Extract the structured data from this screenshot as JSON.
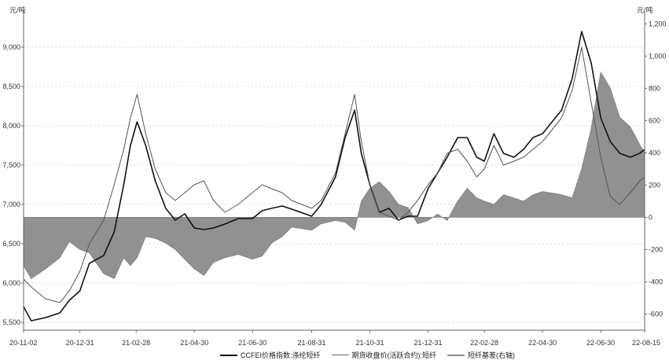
{
  "left_unit": "元/吨",
  "right_unit": "元/吨",
  "chart_data": {
    "type": "line",
    "x_ticks": [
      "20-11-02",
      "20-12-31",
      "21-02-28",
      "21-04-30",
      "21-06-30",
      "21-08-31",
      "21-10-31",
      "21-12-31",
      "22-02-28",
      "22-04-30",
      "22-06-30",
      "22-08-15"
    ],
    "left_axis": {
      "ticks": [
        "5,500",
        "6,000",
        "6,500",
        "7,000",
        "7,500",
        "8,000",
        "8,500",
        "9,000"
      ],
      "ylim": [
        5400,
        9400
      ]
    },
    "right_axis": {
      "ticks": [
        "-600",
        "-400",
        "-200",
        "0",
        "200",
        "400",
        "600",
        "800",
        "1,000",
        "1,200"
      ],
      "ylim": [
        -700,
        1250
      ]
    },
    "grid": "horizontal-dashed",
    "legend_position": "bottom",
    "series": [
      {
        "name": "CCFEI价格指数:涤纶短纤",
        "axis": "left",
        "color": "#111111",
        "points": [
          [
            "20-11-02",
            5700
          ],
          [
            "20-11-10",
            5520
          ],
          [
            "20-11-25",
            5560
          ],
          [
            "20-12-10",
            5620
          ],
          [
            "20-12-20",
            5780
          ],
          [
            "20-12-31",
            5900
          ],
          [
            "21-01-10",
            6250
          ],
          [
            "21-01-25",
            6350
          ],
          [
            "21-02-05",
            6650
          ],
          [
            "21-02-15",
            7250
          ],
          [
            "21-02-22",
            7750
          ],
          [
            "21-03-01",
            8050
          ],
          [
            "21-03-10",
            7750
          ],
          [
            "21-03-20",
            7300
          ],
          [
            "21-03-31",
            6950
          ],
          [
            "21-04-10",
            6800
          ],
          [
            "21-04-20",
            6880
          ],
          [
            "21-04-30",
            6700
          ],
          [
            "21-05-10",
            6680
          ],
          [
            "21-05-20",
            6700
          ],
          [
            "21-06-01",
            6750
          ],
          [
            "21-06-15",
            6820
          ],
          [
            "21-06-30",
            6820
          ],
          [
            "21-07-10",
            6920
          ],
          [
            "21-07-20",
            6950
          ],
          [
            "21-07-31",
            6980
          ],
          [
            "21-08-10",
            6940
          ],
          [
            "21-08-31",
            6850
          ],
          [
            "21-09-10",
            7000
          ],
          [
            "21-09-25",
            7350
          ],
          [
            "21-10-05",
            7850
          ],
          [
            "21-10-15",
            8200
          ],
          [
            "21-10-22",
            7650
          ],
          [
            "21-10-31",
            7250
          ],
          [
            "21-11-10",
            6900
          ],
          [
            "21-11-20",
            6950
          ],
          [
            "21-11-30",
            6800
          ],
          [
            "21-12-10",
            6850
          ],
          [
            "21-12-20",
            6850
          ],
          [
            "21-12-31",
            7200
          ],
          [
            "22-01-10",
            7400
          ],
          [
            "22-01-20",
            7600
          ],
          [
            "22-01-31",
            7850
          ],
          [
            "22-02-10",
            7850
          ],
          [
            "22-02-20",
            7600
          ],
          [
            "22-02-28",
            7550
          ],
          [
            "22-03-10",
            7900
          ],
          [
            "22-03-20",
            7650
          ],
          [
            "22-03-31",
            7600
          ],
          [
            "22-04-10",
            7700
          ],
          [
            "22-04-20",
            7850
          ],
          [
            "22-04-30",
            7900
          ],
          [
            "22-05-10",
            8050
          ],
          [
            "22-05-20",
            8200
          ],
          [
            "22-05-31",
            8600
          ],
          [
            "22-06-10",
            9200
          ],
          [
            "22-06-20",
            8800
          ],
          [
            "22-06-30",
            8100
          ],
          [
            "22-07-10",
            7800
          ],
          [
            "22-07-20",
            7650
          ],
          [
            "22-07-31",
            7600
          ],
          [
            "22-08-10",
            7650
          ],
          [
            "22-08-15",
            7700
          ]
        ]
      },
      {
        "name": "期货收盘价(活跃合约):短纤",
        "axis": "left",
        "color": "#555555",
        "points": [
          [
            "20-11-02",
            6050
          ],
          [
            "20-11-10",
            5950
          ],
          [
            "20-11-25",
            5800
          ],
          [
            "20-12-10",
            5750
          ],
          [
            "20-12-20",
            5900
          ],
          [
            "20-12-31",
            6150
          ],
          [
            "21-01-10",
            6500
          ],
          [
            "21-01-25",
            6800
          ],
          [
            "21-02-05",
            7250
          ],
          [
            "21-02-15",
            7700
          ],
          [
            "21-02-22",
            8100
          ],
          [
            "21-03-01",
            8400
          ],
          [
            "21-03-10",
            7900
          ],
          [
            "21-03-20",
            7450
          ],
          [
            "21-03-31",
            7150
          ],
          [
            "21-04-10",
            7050
          ],
          [
            "21-04-20",
            7150
          ],
          [
            "21-04-30",
            7250
          ],
          [
            "21-05-10",
            7300
          ],
          [
            "21-05-20",
            7050
          ],
          [
            "21-06-01",
            6900
          ],
          [
            "21-06-15",
            7000
          ],
          [
            "21-06-30",
            7150
          ],
          [
            "21-07-10",
            7250
          ],
          [
            "21-07-20",
            7200
          ],
          [
            "21-07-31",
            7150
          ],
          [
            "21-08-10",
            7050
          ],
          [
            "21-08-31",
            6950
          ],
          [
            "21-09-10",
            7050
          ],
          [
            "21-09-25",
            7400
          ],
          [
            "21-10-05",
            7900
          ],
          [
            "21-10-15",
            8400
          ],
          [
            "21-10-22",
            7800
          ],
          [
            "21-10-31",
            7250
          ],
          [
            "21-11-10",
            6900
          ],
          [
            "21-11-20",
            6850
          ],
          [
            "21-11-30",
            6800
          ],
          [
            "21-12-10",
            6900
          ],
          [
            "21-12-20",
            7050
          ],
          [
            "21-12-31",
            7250
          ],
          [
            "22-01-10",
            7400
          ],
          [
            "22-01-20",
            7650
          ],
          [
            "22-01-31",
            7700
          ],
          [
            "22-02-10",
            7550
          ],
          [
            "22-02-20",
            7350
          ],
          [
            "22-02-28",
            7450
          ],
          [
            "22-03-10",
            7750
          ],
          [
            "22-03-20",
            7500
          ],
          [
            "22-03-31",
            7550
          ],
          [
            "22-04-10",
            7600
          ],
          [
            "22-04-20",
            7700
          ],
          [
            "22-04-30",
            7800
          ],
          [
            "22-05-10",
            7950
          ],
          [
            "22-05-20",
            8100
          ],
          [
            "22-05-31",
            8450
          ],
          [
            "22-06-10",
            9000
          ],
          [
            "22-06-20",
            8300
          ],
          [
            "22-06-30",
            7600
          ],
          [
            "22-07-10",
            7100
          ],
          [
            "22-07-20",
            7000
          ],
          [
            "22-07-31",
            7150
          ],
          [
            "22-08-10",
            7300
          ],
          [
            "22-08-15",
            7350
          ]
        ]
      },
      {
        "name": "短纤基差(右轴)",
        "axis": "right",
        "type": "area",
        "color": "#8c8c8c",
        "points": [
          [
            "20-11-02",
            -300
          ],
          [
            "20-11-10",
            -380
          ],
          [
            "20-11-25",
            -320
          ],
          [
            "20-12-10",
            -250
          ],
          [
            "20-12-20",
            -150
          ],
          [
            "20-12-31",
            -200
          ],
          [
            "21-01-10",
            -220
          ],
          [
            "21-01-25",
            -350
          ],
          [
            "21-02-05",
            -380
          ],
          [
            "21-02-15",
            -250
          ],
          [
            "21-02-22",
            -300
          ],
          [
            "21-03-01",
            -250
          ],
          [
            "21-03-10",
            -120
          ],
          [
            "21-03-20",
            -130
          ],
          [
            "21-03-31",
            -160
          ],
          [
            "21-04-10",
            -200
          ],
          [
            "21-04-20",
            -260
          ],
          [
            "21-04-30",
            -320
          ],
          [
            "21-05-10",
            -360
          ],
          [
            "21-05-20",
            -280
          ],
          [
            "21-06-01",
            -250
          ],
          [
            "21-06-15",
            -230
          ],
          [
            "21-06-30",
            -260
          ],
          [
            "21-07-10",
            -240
          ],
          [
            "21-07-20",
            -160
          ],
          [
            "21-07-31",
            -120
          ],
          [
            "21-08-10",
            -60
          ],
          [
            "21-08-31",
            -80
          ],
          [
            "21-09-10",
            -40
          ],
          [
            "21-09-25",
            -20
          ],
          [
            "21-10-05",
            -30
          ],
          [
            "21-10-15",
            -80
          ],
          [
            "21-10-22",
            100
          ],
          [
            "21-10-31",
            180
          ],
          [
            "21-11-10",
            220
          ],
          [
            "21-11-20",
            160
          ],
          [
            "21-11-30",
            80
          ],
          [
            "21-12-10",
            60
          ],
          [
            "21-12-20",
            -40
          ],
          [
            "21-12-31",
            -20
          ],
          [
            "22-01-10",
            20
          ],
          [
            "22-01-20",
            -20
          ],
          [
            "22-01-31",
            100
          ],
          [
            "22-02-10",
            180
          ],
          [
            "22-02-20",
            120
          ],
          [
            "22-02-28",
            100
          ],
          [
            "22-03-10",
            80
          ],
          [
            "22-03-20",
            140
          ],
          [
            "22-03-31",
            120
          ],
          [
            "22-04-10",
            100
          ],
          [
            "22-04-20",
            140
          ],
          [
            "22-04-30",
            160
          ],
          [
            "22-05-10",
            150
          ],
          [
            "22-05-20",
            140
          ],
          [
            "22-05-31",
            120
          ],
          [
            "22-06-10",
            300
          ],
          [
            "22-06-20",
            550
          ],
          [
            "22-06-30",
            900
          ],
          [
            "22-07-10",
            800
          ],
          [
            "22-07-20",
            620
          ],
          [
            "22-07-31",
            560
          ],
          [
            "22-08-10",
            450
          ],
          [
            "22-08-15",
            400
          ]
        ]
      }
    ]
  },
  "legend": [
    {
      "label": "CCFEI价格指数:涤纶短纤",
      "swatch": "solid-black"
    },
    {
      "label": "期货收盘价(活跃合约):短纤",
      "swatch": "thin-dark"
    },
    {
      "label": "短纤基差(右轴)",
      "swatch": "gray"
    }
  ]
}
